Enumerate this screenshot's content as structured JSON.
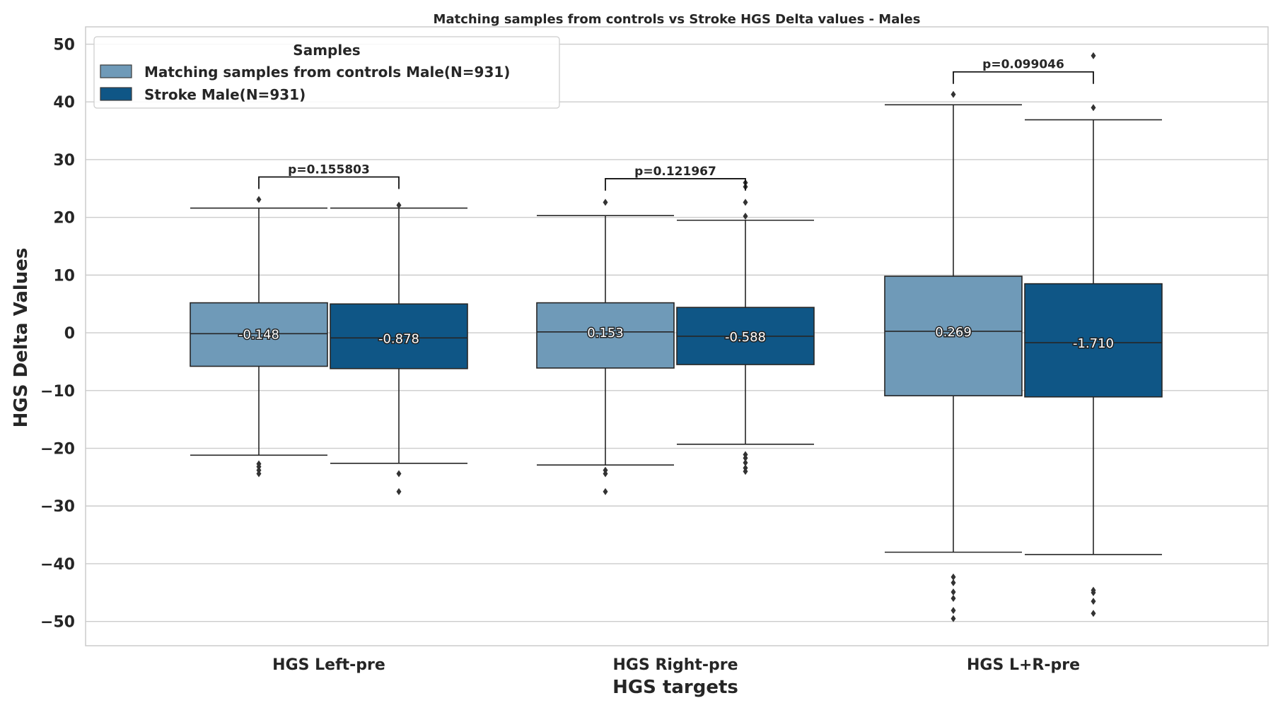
{
  "chart_data": {
    "type": "box",
    "title": "Matching samples from controls vs Stroke HGS Delta values - Males",
    "xlabel": "HGS targets",
    "ylabel": "HGS Delta Values",
    "ylim": [
      -54.2,
      53
    ],
    "yticks": [
      -50,
      -40,
      -30,
      -20,
      -10,
      0,
      10,
      20,
      30,
      40,
      50
    ],
    "ytick_labels": [
      "−50",
      "−40",
      "−30",
      "−20",
      "−10",
      "0",
      "10",
      "20",
      "30",
      "40",
      "50"
    ],
    "grid": true,
    "legend": {
      "title": "Samples",
      "position": "top-left"
    },
    "categories": [
      "HGS Left-pre",
      "HGS Right-pre",
      "HGS L+R-pre"
    ],
    "series": [
      {
        "name": "Matching samples from controls Male(N=931)",
        "color": "#6f9ab8",
        "boxes": [
          {
            "whisker_low": -21.2,
            "q1": -5.8,
            "median": -0.148,
            "q3": 5.2,
            "whisker_high": 21.6,
            "median_label": "-0.148",
            "outliers": [
              23.1,
              -22.7,
              -23.2,
              -23.8,
              -24.4
            ]
          },
          {
            "whisker_low": -22.9,
            "q1": -6.1,
            "median": 0.153,
            "q3": 5.2,
            "whisker_high": 20.3,
            "median_label": "0.153",
            "outliers": [
              22.6,
              -23.8,
              -24.4,
              -27.5
            ]
          },
          {
            "whisker_low": -38.0,
            "q1": -10.9,
            "median": 0.269,
            "q3": 9.8,
            "whisker_high": 39.5,
            "median_label": "0.269",
            "outliers": [
              41.3,
              -42.3,
              -43.3,
              -44.9,
              -46.0,
              -48.1,
              -49.5
            ]
          }
        ]
      },
      {
        "name": "Stroke Male(N=931)",
        "color": "#0f5686",
        "boxes": [
          {
            "whisker_low": -22.6,
            "q1": -6.2,
            "median": -0.878,
            "q3": 5.0,
            "whisker_high": 21.6,
            "median_label": "-0.878",
            "outliers": [
              22.1,
              -24.4,
              -27.5
            ]
          },
          {
            "whisker_low": -19.3,
            "q1": -5.5,
            "median": -0.588,
            "q3": 4.4,
            "whisker_high": 19.5,
            "median_label": "-0.588",
            "outliers": [
              26.0,
              25.3,
              22.6,
              20.2,
              -21.1,
              -21.7,
              -22.5,
              -23.4,
              -24.0
            ]
          },
          {
            "whisker_low": -38.4,
            "q1": -11.1,
            "median": -1.71,
            "q3": 8.5,
            "whisker_high": 36.9,
            "median_label": "-1.710",
            "outliers": [
              48.0,
              39.0,
              -44.6,
              -45.0,
              -46.5,
              -48.6
            ]
          }
        ]
      }
    ],
    "annotations": [
      {
        "category": 0,
        "text": "p=0.155803",
        "bracket_y": 27.0
      },
      {
        "category": 1,
        "text": "p=0.121967",
        "bracket_y": 26.7
      },
      {
        "category": 2,
        "text": "p=0.099046",
        "bracket_y": 45.2
      }
    ]
  }
}
